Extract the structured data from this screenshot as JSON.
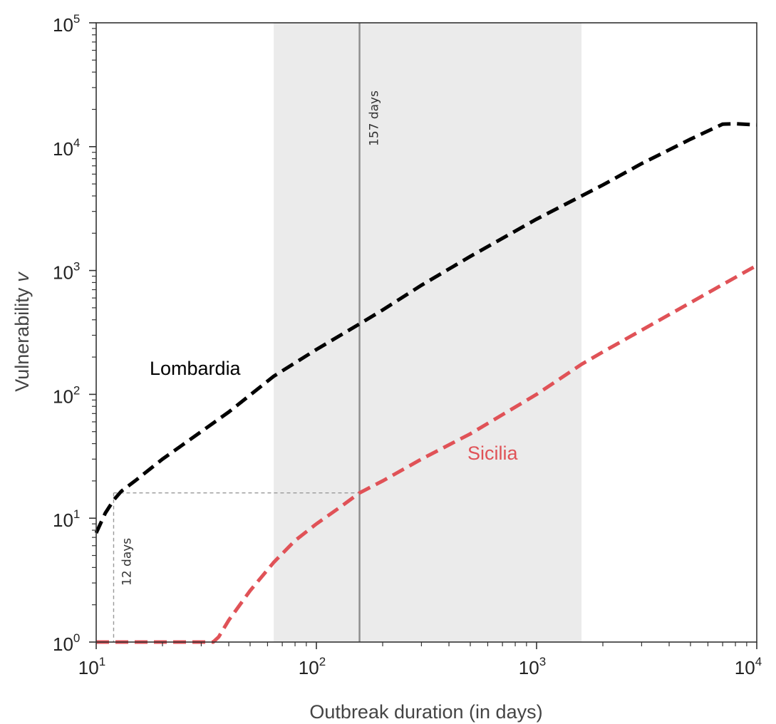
{
  "chart_data": {
    "type": "line",
    "x_scale": "log",
    "y_scale": "log",
    "xlim": [
      10,
      10000
    ],
    "ylim": [
      1,
      100000
    ],
    "xlabel": "Outbreak duration (in days)",
    "ylabel": "Vulnerability",
    "ylabel_symbol": "v",
    "x_ticks": [
      {
        "value": 10,
        "base": "10",
        "exp": "1"
      },
      {
        "value": 100,
        "base": "10",
        "exp": "2"
      },
      {
        "value": 1000,
        "base": "10",
        "exp": "3"
      },
      {
        "value": 10000,
        "base": "10",
        "exp": "4"
      }
    ],
    "y_ticks": [
      {
        "value": 1,
        "base": "10",
        "exp": "0"
      },
      {
        "value": 10,
        "base": "10",
        "exp": "1"
      },
      {
        "value": 100,
        "base": "10",
        "exp": "2"
      },
      {
        "value": 1000,
        "base": "10",
        "exp": "3"
      },
      {
        "value": 10000,
        "base": "10",
        "exp": "4"
      },
      {
        "value": 100000,
        "base": "10",
        "exp": "5"
      }
    ],
    "grid": false,
    "shaded_region": {
      "x": [
        64,
        1600
      ],
      "color": "#ebebeb"
    },
    "vertical_line": {
      "x": 157,
      "label": "157 days",
      "color": "#8c8c8c"
    },
    "reference_lines": {
      "x": 12,
      "y": 16,
      "x_end": 157,
      "label": "12 days",
      "color": "#999999"
    },
    "series": [
      {
        "name": "Lombardia",
        "color": "#000000",
        "label_position": "upper-left",
        "x": [
          10,
          11,
          12,
          13,
          15,
          20,
          30,
          40,
          64,
          100,
          157,
          200,
          300,
          500,
          1000,
          1600,
          2000,
          3000,
          5000,
          7000,
          8000,
          10000
        ],
        "y": [
          7.6,
          11,
          14,
          16.5,
          20,
          30,
          50,
          72,
          140,
          230,
          370,
          480,
          760,
          1300,
          2600,
          4000,
          4900,
          7300,
          11500,
          15200,
          15300,
          15000
        ]
      },
      {
        "name": "Sicilia",
        "color": "#e05257",
        "label_position": "middle-right",
        "x": [
          10,
          20,
          34,
          36,
          40,
          50,
          64,
          80,
          100,
          130,
          157,
          200,
          300,
          500,
          1000,
          1600,
          2000,
          3000,
          5000,
          10000
        ],
        "y": [
          1,
          1,
          1,
          1.1,
          1.5,
          2.6,
          4.4,
          6.6,
          9,
          12.5,
          16,
          20,
          30,
          48,
          100,
          175,
          220,
          330,
          550,
          1100
        ]
      }
    ]
  }
}
